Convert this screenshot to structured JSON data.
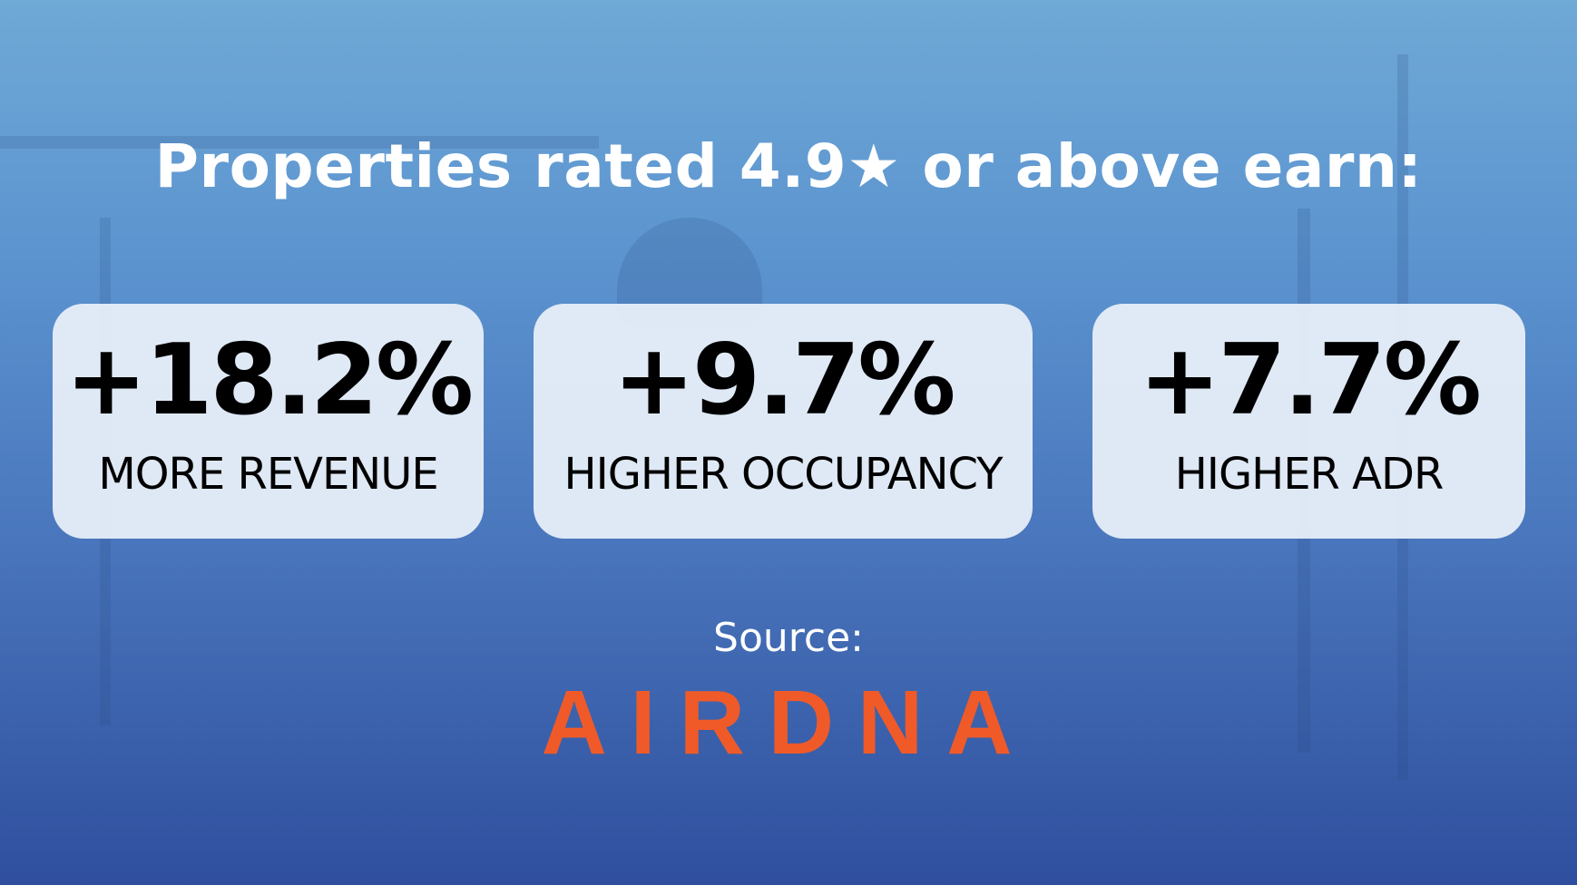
{
  "header": {
    "title": "Properties rated 4.9★ or above earn:"
  },
  "cards": [
    {
      "value": "+18.2%",
      "label": "MORE REVENUE"
    },
    {
      "value": "+9.7%",
      "label": "HIGHER OCCUPANCY"
    },
    {
      "value": "+7.7%",
      "label": "HIGHER ADR"
    }
  ],
  "source": {
    "label": "Source:",
    "logo": "AIRDNA"
  }
}
